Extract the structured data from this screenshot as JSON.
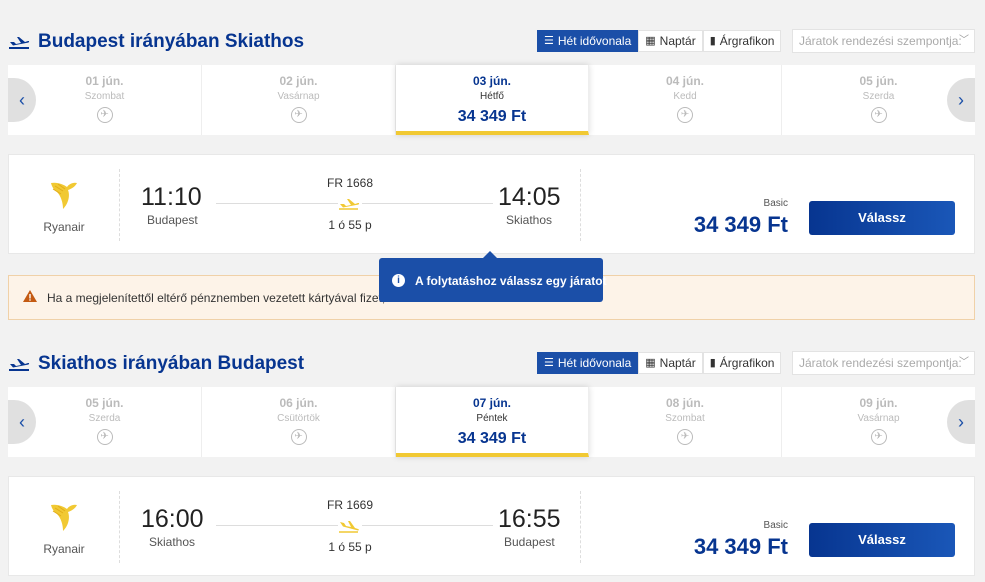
{
  "outbound": {
    "title": "Budapest irányában Skiathos",
    "tabs": {
      "week": "Hét idővonala",
      "calendar": "Naptár",
      "chart": "Árgrafikon"
    },
    "sort_placeholder": "Járatok rendezési szempontja:",
    "dates": [
      {
        "date": "01 jún.",
        "weekday": "Szombat"
      },
      {
        "date": "02 jún.",
        "weekday": "Vasárnap"
      },
      {
        "date": "03 jún.",
        "weekday": "Hétfő",
        "price": "34 349 Ft"
      },
      {
        "date": "04 jún.",
        "weekday": "Kedd"
      },
      {
        "date": "05 jún.",
        "weekday": "Szerda"
      }
    ],
    "flight": {
      "airline": "Ryanair",
      "dep_time": "11:10",
      "dep_city": "Budapest",
      "arr_time": "14:05",
      "arr_city": "Skiathos",
      "flight_no": "FR 1668",
      "duration": "1 ó 55 p",
      "fare_label": "Basic",
      "price": "34 349 Ft",
      "select_label": "Válassz"
    }
  },
  "warning_text": "Ha a megjelenítettől eltérő pénznemben vezetett kártyával fizet, a",
  "tooltip_text": "A folytatáshoz válassz egy járatot",
  "inbound": {
    "title": "Skiathos irányában Budapest",
    "tabs": {
      "week": "Hét idővonala",
      "calendar": "Naptár",
      "chart": "Árgrafikon"
    },
    "sort_placeholder": "Járatok rendezési szempontja:",
    "dates": [
      {
        "date": "05 jún.",
        "weekday": "Szerda"
      },
      {
        "date": "06 jún.",
        "weekday": "Csütörtök"
      },
      {
        "date": "07 jún.",
        "weekday": "Péntek",
        "price": "34 349 Ft"
      },
      {
        "date": "08 jún.",
        "weekday": "Szombat"
      },
      {
        "date": "09 jún.",
        "weekday": "Vasárnap"
      }
    ],
    "flight": {
      "airline": "Ryanair",
      "dep_time": "16:00",
      "dep_city": "Skiathos",
      "arr_time": "16:55",
      "arr_city": "Budapest",
      "flight_no": "FR 1669",
      "duration": "1 ó 55 p",
      "fare_label": "Basic",
      "price": "34 349 Ft",
      "select_label": "Válassz"
    }
  },
  "colors": {
    "brand_blue": "#073590",
    "accent_yellow": "#f1c933",
    "tab_active": "#1b4fa8"
  },
  "icons": {
    "plane": "plane-icon",
    "calendar": "calendar-icon",
    "chart": "bar-chart-icon",
    "info": "info-icon",
    "warning": "warning-icon",
    "no_flight": "no-flight-icon"
  }
}
